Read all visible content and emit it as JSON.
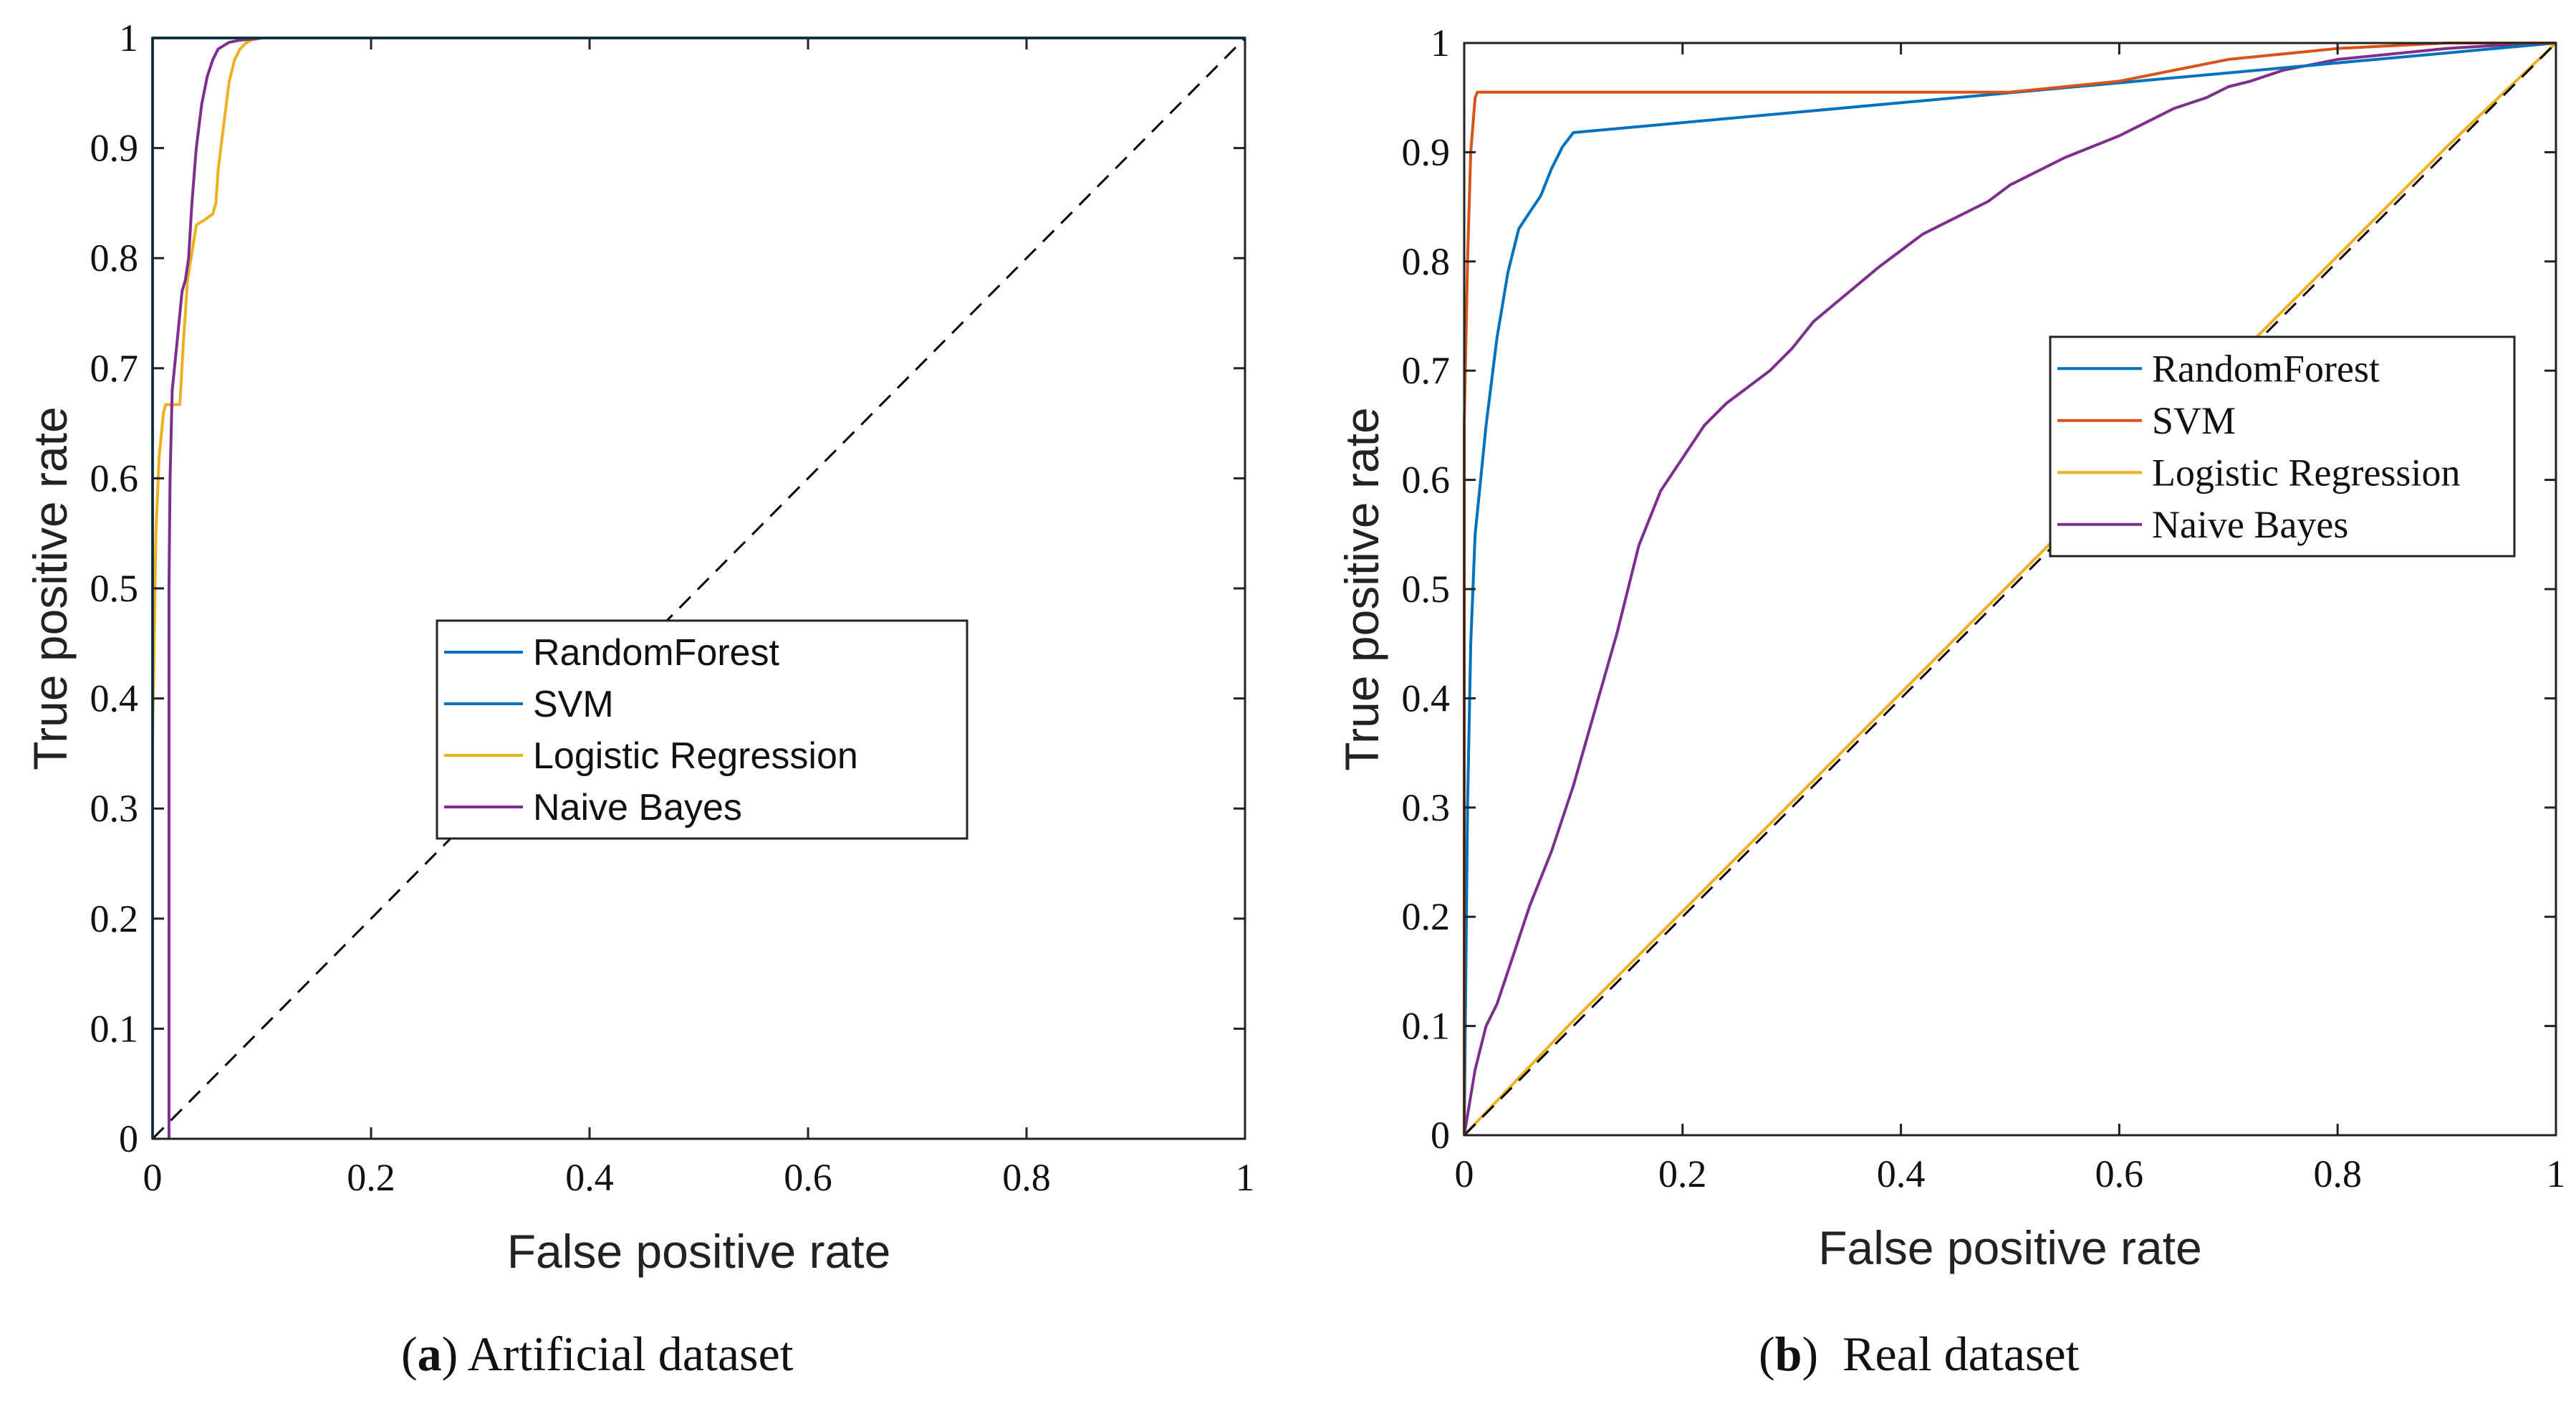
{
  "chart_data": [
    {
      "type": "line",
      "caption": {
        "letter": "a",
        "text": "Artificial dataset"
      },
      "xlabel": "False positive rate",
      "ylabel": "True positive rate",
      "xlim": [
        0,
        1
      ],
      "ylim": [
        0,
        1
      ],
      "xticks": [
        "0",
        "0.2",
        "0.4",
        "0.6",
        "0.8",
        "1"
      ],
      "yticks": [
        "0",
        "0.1",
        "0.2",
        "0.3",
        "0.4",
        "0.5",
        "0.6",
        "0.7",
        "0.8",
        "0.9",
        "1"
      ],
      "legend": {
        "placement": "center",
        "entries": [
          "RandomForest",
          "SVM",
          "Logistic Regression",
          "Naive Bayes"
        ]
      },
      "series": [
        {
          "name": "Diagonal",
          "color": "#000000",
          "dashed": true,
          "x": [
            0,
            1
          ],
          "y": [
            0,
            1
          ]
        },
        {
          "name": "Logistic Regression",
          "color": "#EDB120",
          "x": [
            0,
            0,
            0.003,
            0.006,
            0.01,
            0.012,
            0.015,
            0.025,
            0.028,
            0.032,
            0.04,
            0.048,
            0.055,
            0.058,
            0.06,
            0.065,
            0.07,
            0.075,
            0.08,
            0.085,
            0.09,
            0.1,
            0.15,
            0.3,
            1
          ],
          "y": [
            0,
            0.36,
            0.55,
            0.62,
            0.66,
            0.667,
            0.667,
            0.667,
            0.72,
            0.78,
            0.83,
            0.835,
            0.84,
            0.85,
            0.88,
            0.92,
            0.96,
            0.98,
            0.99,
            0.995,
            0.998,
            1.0,
            1.0,
            1.0,
            1.0
          ]
        },
        {
          "name": "Naive Bayes",
          "color": "#7E2F8E",
          "x": [
            0.015,
            0.015,
            0.016,
            0.018,
            0.022,
            0.027,
            0.03,
            0.033,
            0.036,
            0.04,
            0.045,
            0.05,
            0.055,
            0.06,
            0.065,
            0.07,
            0.08,
            0.1,
            0.2,
            1
          ],
          "y": [
            0,
            0.5,
            0.6,
            0.68,
            0.72,
            0.77,
            0.78,
            0.8,
            0.85,
            0.9,
            0.94,
            0.965,
            0.98,
            0.99,
            0.993,
            0.996,
            0.998,
            1.0,
            1.0,
            1.0
          ]
        },
        {
          "name": "SVM",
          "color": "#0072BD",
          "x": [
            0,
            0,
            1
          ],
          "y": [
            0,
            1,
            1
          ]
        },
        {
          "name": "RandomForest",
          "color": "#0072BD",
          "x": [
            0,
            0,
            1
          ],
          "y": [
            0,
            1,
            1
          ]
        }
      ]
    },
    {
      "type": "line",
      "caption": {
        "letter": "b",
        "text": "Real dataset"
      },
      "xlabel": "False positive rate",
      "ylabel": "True positive rate",
      "xlim": [
        0,
        1
      ],
      "ylim": [
        0,
        1
      ],
      "xticks": [
        "0",
        "0.2",
        "0.4",
        "0.6",
        "0.8",
        "1"
      ],
      "yticks": [
        "0",
        "0.1",
        "0.2",
        "0.3",
        "0.4",
        "0.5",
        "0.6",
        "0.7",
        "0.8",
        "0.9",
        "1"
      ],
      "legend": {
        "placement": "top-right",
        "entries": [
          "RandomForest",
          "SVM",
          "Logistic Regression",
          "Naive Bayes"
        ]
      },
      "series": [
        {
          "name": "Logistic Regression",
          "color": "#EDB120",
          "x": [
            0,
            0.1,
            0.2,
            0.3,
            0.4,
            0.5,
            0.6,
            0.7,
            0.8,
            0.9,
            1
          ],
          "y": [
            0,
            0.105,
            0.205,
            0.305,
            0.405,
            0.505,
            0.605,
            0.705,
            0.805,
            0.905,
            1
          ]
        },
        {
          "name": "Diagonal",
          "color": "#000000",
          "dashed": true,
          "x": [
            0,
            1
          ],
          "y": [
            0,
            1
          ]
        },
        {
          "name": "Naive Bayes",
          "color": "#7E2F8E",
          "x": [
            0,
            0.005,
            0.01,
            0.02,
            0.03,
            0.04,
            0.05,
            0.06,
            0.08,
            0.1,
            0.12,
            0.14,
            0.16,
            0.18,
            0.2,
            0.22,
            0.24,
            0.26,
            0.28,
            0.3,
            0.32,
            0.35,
            0.38,
            0.4,
            0.42,
            0.45,
            0.48,
            0.5,
            0.55,
            0.6,
            0.62,
            0.65,
            0.68,
            0.7,
            0.72,
            0.75,
            0.8,
            0.85,
            0.9,
            0.95,
            1
          ],
          "y": [
            0,
            0.03,
            0.06,
            0.1,
            0.12,
            0.15,
            0.18,
            0.21,
            0.26,
            0.32,
            0.39,
            0.46,
            0.54,
            0.59,
            0.62,
            0.65,
            0.67,
            0.685,
            0.7,
            0.72,
            0.745,
            0.77,
            0.795,
            0.81,
            0.825,
            0.84,
            0.855,
            0.87,
            0.895,
            0.915,
            0.925,
            0.94,
            0.95,
            0.96,
            0.965,
            0.975,
            0.985,
            0.99,
            0.995,
            0.998,
            1
          ]
        },
        {
          "name": "RandomForest",
          "color": "#0072BD",
          "x": [
            0,
            0.003,
            0.006,
            0.01,
            0.015,
            0.02,
            0.03,
            0.04,
            0.05,
            0.06,
            0.07,
            0.08,
            0.09,
            0.1,
            1
          ],
          "y": [
            0,
            0.3,
            0.45,
            0.55,
            0.6,
            0.65,
            0.73,
            0.79,
            0.83,
            0.845,
            0.86,
            0.885,
            0.905,
            0.918,
            1
          ]
        },
        {
          "name": "SVM",
          "color": "#D95319",
          "x": [
            0,
            0,
            0.003,
            0.006,
            0.01,
            0.012,
            0.3,
            0.5,
            0.55,
            0.6,
            0.65,
            0.7,
            0.8,
            0.9,
            1
          ],
          "y": [
            0,
            0.65,
            0.8,
            0.9,
            0.95,
            0.955,
            0.955,
            0.955,
            0.96,
            0.965,
            0.975,
            0.985,
            0.995,
            1.0,
            1.0
          ]
        }
      ]
    }
  ]
}
